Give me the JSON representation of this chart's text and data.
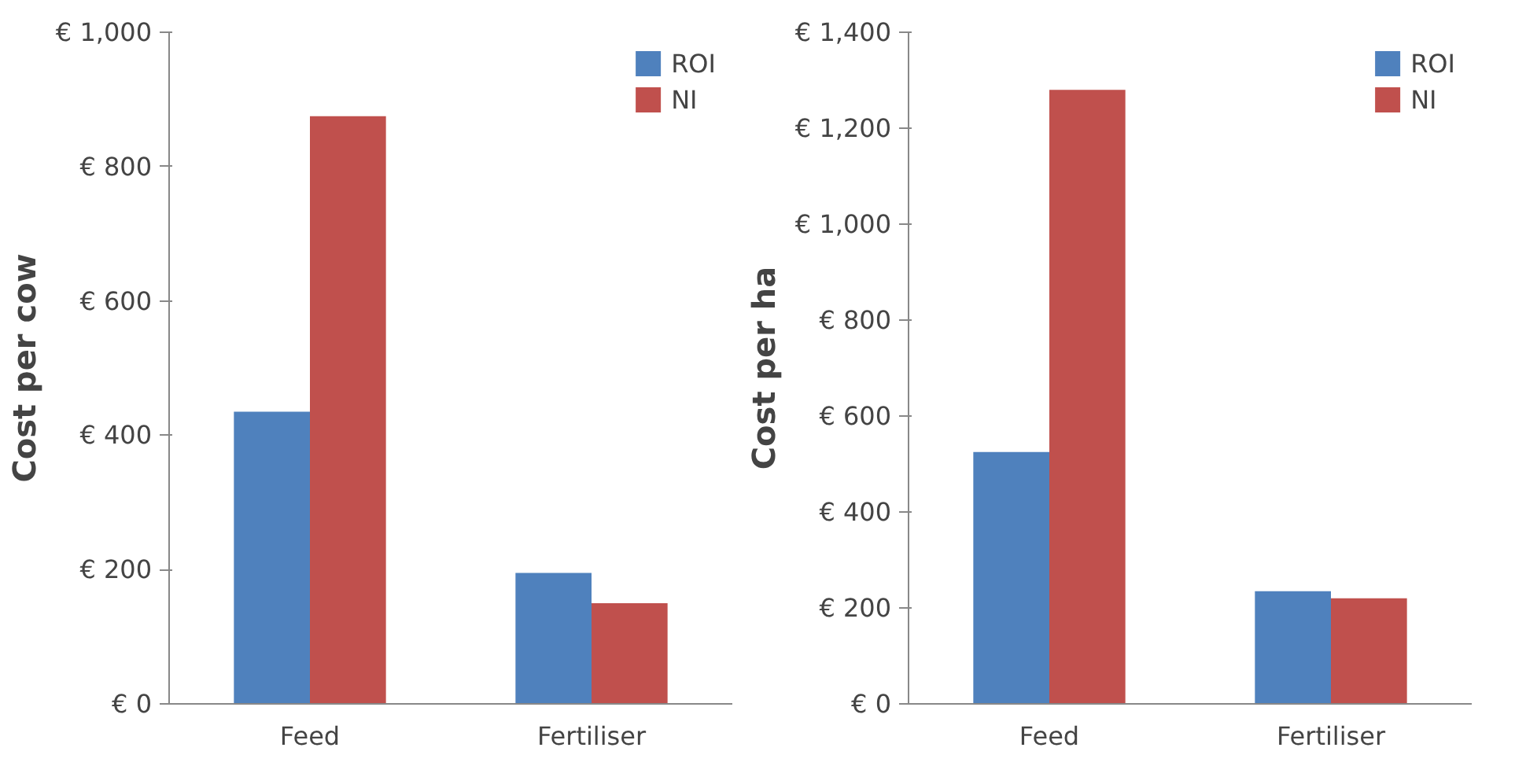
{
  "chart_data": [
    {
      "type": "bar",
      "ylabel": "Cost per cow",
      "categories": [
        "Feed",
        "Fertiliser"
      ],
      "series": [
        {
          "name": "ROI",
          "color": "#4f81bd",
          "values": [
            435,
            195
          ]
        },
        {
          "name": "NI",
          "color": "#c0504d",
          "values": [
            875,
            150
          ]
        }
      ],
      "ylim": [
        0,
        1000
      ],
      "yticks": [
        {
          "value": 0,
          "label": "€ 0"
        },
        {
          "value": 200,
          "label": "€ 200"
        },
        {
          "value": 400,
          "label": "€ 400"
        },
        {
          "value": 600,
          "label": "€ 600"
        },
        {
          "value": 800,
          "label": "€ 800"
        },
        {
          "value": 1000,
          "label": "€ 1,000"
        }
      ],
      "grid": false,
      "legend": "top right"
    },
    {
      "type": "bar",
      "ylabel": "Cost per ha",
      "categories": [
        "Feed",
        "Fertiliser"
      ],
      "series": [
        {
          "name": "ROI",
          "color": "#4f81bd",
          "values": [
            525,
            235
          ]
        },
        {
          "name": "NI",
          "color": "#c0504d",
          "values": [
            1280,
            220
          ]
        }
      ],
      "ylim": [
        0,
        1400
      ],
      "yticks": [
        {
          "value": 0,
          "label": "€ 0"
        },
        {
          "value": 200,
          "label": "€ 200"
        },
        {
          "value": 400,
          "label": "€ 400"
        },
        {
          "value": 600,
          "label": "€ 600"
        },
        {
          "value": 800,
          "label": "€ 800"
        },
        {
          "value": 1000,
          "label": "€ 1,000"
        },
        {
          "value": 1200,
          "label": "€ 1,200"
        },
        {
          "value": 1400,
          "label": "€ 1,400"
        }
      ],
      "grid": false,
      "legend": "top right"
    }
  ]
}
